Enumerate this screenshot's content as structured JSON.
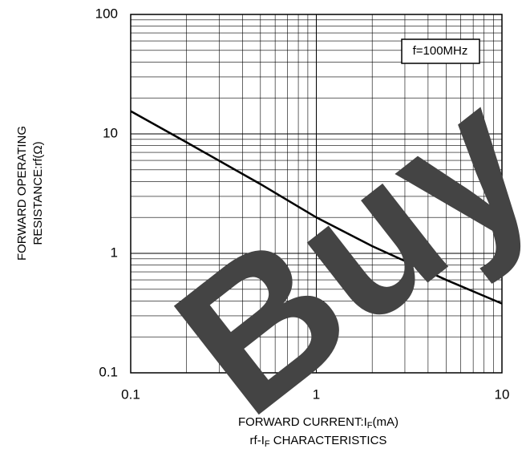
{
  "chart_data": {
    "type": "line",
    "title": [
      "rf-I",
      "F",
      " CHARACTERISTICS"
    ],
    "xlabel": [
      "FORWARD CURRENT:I",
      "F",
      "(mA)"
    ],
    "ylabel": [
      "FORWARD OPERATING",
      "RESISTANCE:rf(Ω)"
    ],
    "annotation": "f=100MHz",
    "watermark": "Buy",
    "x": [
      0.1,
      0.2,
      0.5,
      1,
      2,
      5,
      10
    ],
    "series": [
      {
        "color": "#000000",
        "values": [
          15.5,
          8.5,
          3.8,
          2.0,
          1.15,
          0.6,
          0.38
        ]
      }
    ],
    "xscale": "log",
    "yscale": "log",
    "xlim": [
      0.1,
      10
    ],
    "ylim": [
      0.1,
      100
    ],
    "xticks": [
      0.1,
      1,
      10
    ],
    "yticks": [
      0.1,
      1,
      10,
      100
    ],
    "grid": true,
    "minor_grid": true
  }
}
